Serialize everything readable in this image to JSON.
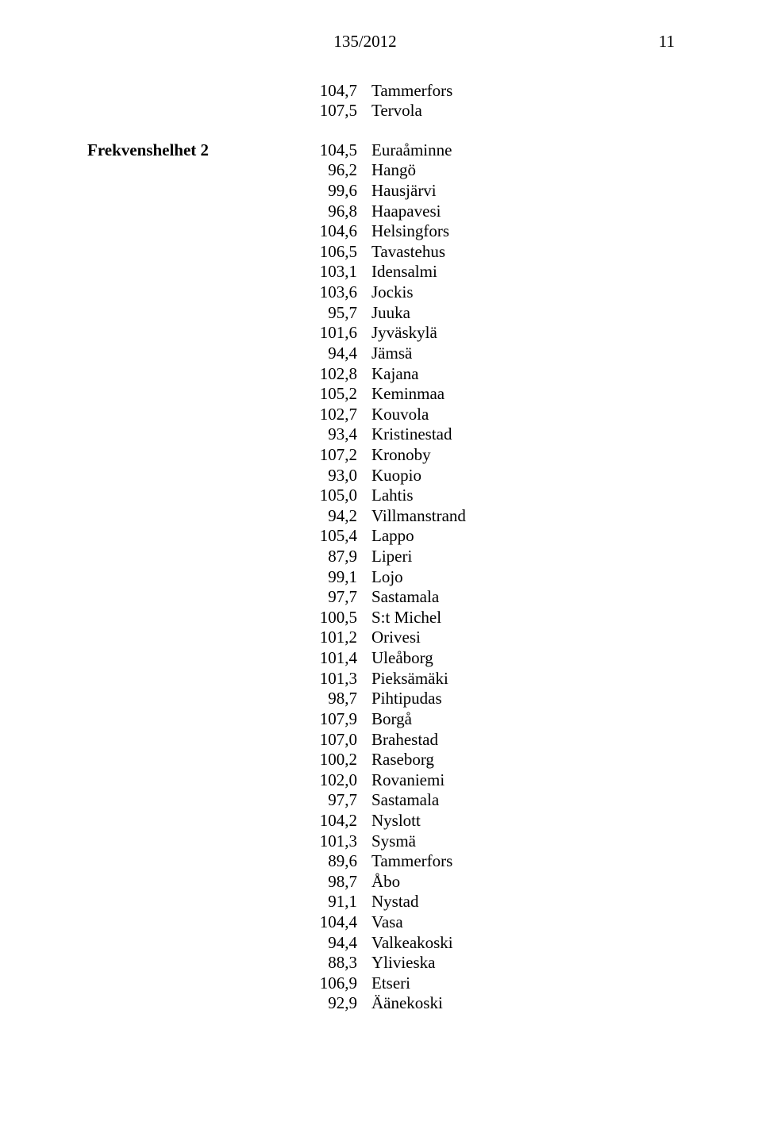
{
  "header": {
    "law_number": "135/2012",
    "page_number": "11"
  },
  "section1": {
    "rows": [
      {
        "freq": "104,7",
        "loc": "Tammerfors"
      },
      {
        "freq": "107,5",
        "loc": "Tervola"
      }
    ]
  },
  "section2": {
    "label": "Frekvenshelhet 2",
    "rows": [
      {
        "freq": "104,5",
        "loc": "Euraåminne"
      },
      {
        "freq": "96,2",
        "loc": "Hangö"
      },
      {
        "freq": "99,6",
        "loc": "Hausjärvi"
      },
      {
        "freq": "96,8",
        "loc": "Haapavesi"
      },
      {
        "freq": "104,6",
        "loc": "Helsingfors"
      },
      {
        "freq": "106,5",
        "loc": "Tavastehus"
      },
      {
        "freq": "103,1",
        "loc": "Idensalmi"
      },
      {
        "freq": "103,6",
        "loc": "Jockis"
      },
      {
        "freq": "95,7",
        "loc": "Juuka"
      },
      {
        "freq": "101,6",
        "loc": "Jyväskylä"
      },
      {
        "freq": "94,4",
        "loc": "Jämsä"
      },
      {
        "freq": "102,8",
        "loc": "Kajana"
      },
      {
        "freq": "105,2",
        "loc": "Keminmaa"
      },
      {
        "freq": "102,7",
        "loc": "Kouvola"
      },
      {
        "freq": "93,4",
        "loc": "Kristinestad"
      },
      {
        "freq": "107,2",
        "loc": "Kronoby"
      },
      {
        "freq": "93,0",
        "loc": "Kuopio"
      },
      {
        "freq": "105,0",
        "loc": "Lahtis"
      },
      {
        "freq": "94,2",
        "loc": "Villmanstrand"
      },
      {
        "freq": "105,4",
        "loc": "Lappo"
      },
      {
        "freq": "87,9",
        "loc": "Liperi"
      },
      {
        "freq": "99,1",
        "loc": "Lojo"
      },
      {
        "freq": "97,7",
        "loc": "Sastamala"
      },
      {
        "freq": "100,5",
        "loc": "S:t Michel"
      },
      {
        "freq": "101,2",
        "loc": "Orivesi"
      },
      {
        "freq": "101,4",
        "loc": "Uleåborg"
      },
      {
        "freq": "101,3",
        "loc": "Pieksämäki"
      },
      {
        "freq": "98,7",
        "loc": "Pihtipudas"
      },
      {
        "freq": "107,9",
        "loc": "Borgå"
      },
      {
        "freq": "107,0",
        "loc": "Brahestad"
      },
      {
        "freq": "100,2",
        "loc": "Raseborg"
      },
      {
        "freq": "102,0",
        "loc": "Rovaniemi"
      },
      {
        "freq": "97,7",
        "loc": "Sastamala"
      },
      {
        "freq": "104,2",
        "loc": "Nyslott"
      },
      {
        "freq": "101,3",
        "loc": "Sysmä"
      },
      {
        "freq": "89,6",
        "loc": "Tammerfors"
      },
      {
        "freq": "98,7",
        "loc": "Åbo"
      },
      {
        "freq": "91,1",
        "loc": "Nystad"
      },
      {
        "freq": "104,4",
        "loc": "Vasa"
      },
      {
        "freq": "94,4",
        "loc": "Valkeakoski"
      },
      {
        "freq": "88,3",
        "loc": "Ylivieska"
      },
      {
        "freq": "106,9",
        "loc": "Etseri"
      },
      {
        "freq": "92,9",
        "loc": "Äänekoski"
      }
    ]
  }
}
